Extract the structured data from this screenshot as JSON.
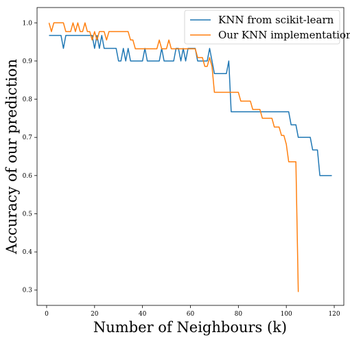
{
  "chart_data": {
    "type": "line",
    "xlabel": "Number of Neighbours (k)",
    "ylabel": "Accuracy of our prediction",
    "xlim": [
      -4,
      124
    ],
    "ylim": [
      0.26,
      1.04
    ],
    "xticks": [
      0,
      20,
      40,
      60,
      80,
      100,
      120
    ],
    "yticks": [
      0.3,
      0.4,
      0.5,
      0.6,
      0.7,
      0.8,
      0.9,
      1.0
    ],
    "ytick_labels": [
      "0.3",
      "0.4",
      "0.5",
      "0.6",
      "0.7",
      "0.8",
      "0.9",
      "1.0"
    ],
    "grid": false,
    "legend_position": "top-right",
    "series": [
      {
        "name": "KNN from scikit-learn",
        "color": "#1f77b4",
        "x": [
          1,
          6,
          7,
          8,
          9,
          19,
          20,
          21,
          22,
          23,
          24,
          29,
          30,
          31,
          32,
          33,
          34,
          35,
          36,
          40,
          41,
          42,
          43,
          47,
          48,
          49,
          50,
          53,
          54,
          55,
          56,
          57,
          58,
          59,
          60,
          61,
          62,
          63,
          64,
          67,
          68,
          69,
          70,
          71,
          72,
          75,
          76,
          77,
          80,
          85,
          90,
          95,
          100,
          101,
          102,
          103,
          104,
          105,
          109,
          110,
          111,
          112,
          113,
          114,
          115,
          118,
          119
        ],
        "y": [
          0.967,
          0.967,
          0.933,
          0.967,
          0.967,
          0.967,
          0.933,
          0.967,
          0.933,
          0.967,
          0.933,
          0.933,
          0.9,
          0.9,
          0.933,
          0.9,
          0.933,
          0.9,
          0.9,
          0.9,
          0.933,
          0.9,
          0.9,
          0.9,
          0.933,
          0.9,
          0.9,
          0.9,
          0.933,
          0.933,
          0.9,
          0.933,
          0.9,
          0.933,
          0.933,
          0.933,
          0.933,
          0.9,
          0.9,
          0.9,
          0.933,
          0.9,
          0.867,
          0.867,
          0.867,
          0.867,
          0.9,
          0.767,
          0.767,
          0.767,
          0.767,
          0.767,
          0.767,
          0.767,
          0.733,
          0.733,
          0.733,
          0.7,
          0.7,
          0.7,
          0.667,
          0.667,
          0.667,
          0.6,
          0.6,
          0.6,
          0.6
        ]
      },
      {
        "name": "Our KNN implementation",
        "color": "#ff7f0e",
        "x": [
          1,
          2,
          3,
          4,
          5,
          6,
          7,
          8,
          9,
          10,
          11,
          12,
          13,
          14,
          15,
          16,
          17,
          18,
          19,
          20,
          21,
          22,
          23,
          24,
          25,
          26,
          27,
          28,
          29,
          30,
          31,
          32,
          33,
          34,
          35,
          36,
          37,
          38,
          39,
          40,
          41,
          42,
          43,
          44,
          45,
          46,
          47,
          48,
          49,
          50,
          51,
          52,
          53,
          54,
          55,
          56,
          57,
          58,
          59,
          60,
          61,
          62,
          63,
          64,
          65,
          66,
          67,
          68,
          69,
          70,
          75,
          76,
          77,
          78,
          79,
          80,
          81,
          82,
          83,
          84,
          85,
          86,
          87,
          88,
          89,
          90,
          91,
          92,
          93,
          94,
          95,
          96,
          97,
          98,
          99,
          100,
          101,
          102,
          103,
          104,
          105
        ],
        "y": [
          1.0,
          0.977,
          1.0,
          1.0,
          1.0,
          1.0,
          1.0,
          0.977,
          0.977,
          0.977,
          1.0,
          0.977,
          1.0,
          0.977,
          0.977,
          1.0,
          0.977,
          0.977,
          0.955,
          0.977,
          0.955,
          0.977,
          0.977,
          0.977,
          0.955,
          0.977,
          0.977,
          0.977,
          0.977,
          0.977,
          0.977,
          0.977,
          0.977,
          0.977,
          0.955,
          0.955,
          0.932,
          0.932,
          0.932,
          0.932,
          0.932,
          0.932,
          0.932,
          0.932,
          0.932,
          0.932,
          0.955,
          0.932,
          0.932,
          0.932,
          0.955,
          0.932,
          0.932,
          0.932,
          0.932,
          0.932,
          0.932,
          0.932,
          0.932,
          0.932,
          0.932,
          0.932,
          0.909,
          0.909,
          0.909,
          0.886,
          0.886,
          0.909,
          0.886,
          0.818,
          0.818,
          0.818,
          0.818,
          0.818,
          0.818,
          0.818,
          0.795,
          0.795,
          0.795,
          0.795,
          0.795,
          0.773,
          0.773,
          0.773,
          0.773,
          0.75,
          0.75,
          0.75,
          0.75,
          0.75,
          0.727,
          0.727,
          0.727,
          0.705,
          0.705,
          0.682,
          0.636,
          0.636,
          0.636,
          0.636,
          0.295
        ]
      }
    ]
  }
}
